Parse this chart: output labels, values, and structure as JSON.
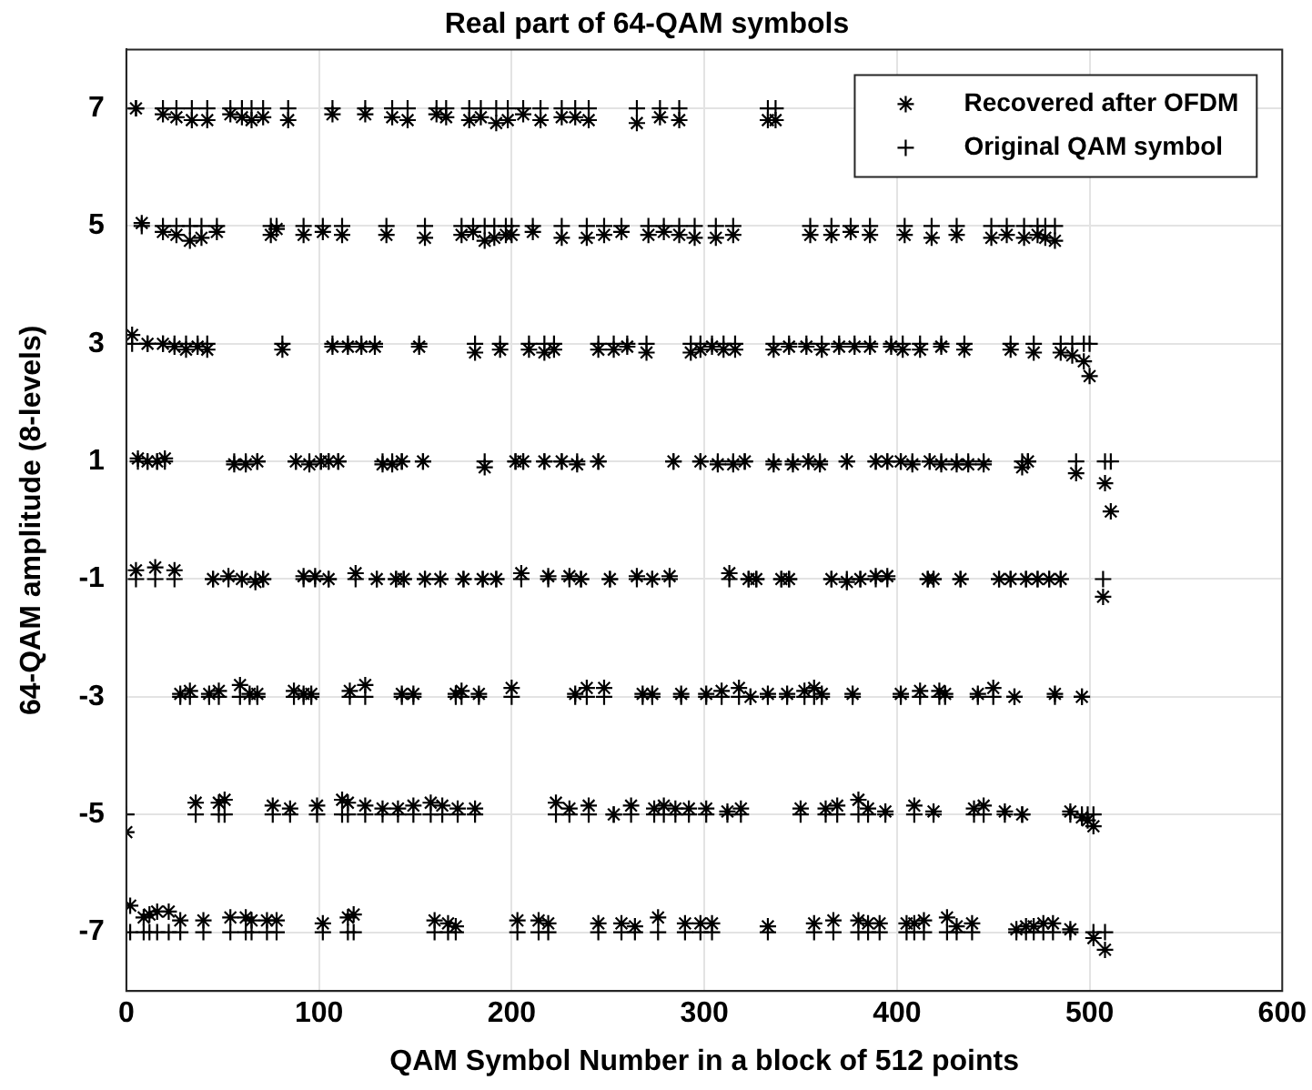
{
  "chart_data": {
    "type": "scatter",
    "title": "Real part of 64-QAM symbols",
    "xlabel": "QAM Symbol Number in a block of 512 points",
    "ylabel": "64-QAM amplitude (8-levels)",
    "xlim": [
      0,
      600
    ],
    "xticks": [
      0,
      100,
      200,
      300,
      400,
      500,
      600
    ],
    "ylim": [
      -8,
      8
    ],
    "yticks": [
      -7,
      -5,
      -3,
      -1,
      1,
      3,
      5,
      7
    ],
    "grid": true,
    "legend": "top right",
    "x": [
      5,
      19,
      26,
      34,
      42,
      54,
      60,
      65,
      71,
      84,
      107,
      124,
      138,
      146,
      161,
      166,
      178,
      184,
      192,
      198,
      206,
      215,
      226,
      233,
      240,
      265,
      277,
      287,
      333,
      337,
      8,
      19,
      26,
      33,
      39,
      47,
      75,
      78,
      92,
      102,
      112,
      135,
      155,
      174,
      180,
      186,
      191,
      197,
      200,
      211,
      226,
      239,
      248,
      257,
      271,
      279,
      287,
      295,
      306,
      315,
      355,
      366,
      376,
      386,
      404,
      418,
      431,
      449,
      457,
      466,
      473,
      477,
      482,
      3,
      11,
      19,
      25,
      31,
      37,
      42,
      81,
      107,
      115,
      122,
      129,
      152,
      181,
      194,
      209,
      217,
      222,
      245,
      253,
      260,
      270,
      293,
      298,
      304,
      310,
      316,
      336,
      344,
      353,
      361,
      370,
      378,
      386,
      397,
      403,
      412,
      423,
      435,
      459,
      471,
      485,
      491,
      497,
      500,
      6,
      11,
      16,
      20,
      56,
      62,
      68,
      88,
      95,
      101,
      105,
      110,
      133,
      138,
      143,
      154,
      186,
      202,
      206,
      217,
      226,
      234,
      245,
      284,
      298,
      307,
      315,
      321,
      336,
      346,
      354,
      360,
      374,
      389,
      395,
      402,
      408,
      417,
      423,
      431,
      437,
      445,
      465,
      468,
      493,
      508,
      511,
      5,
      15,
      25,
      45,
      53,
      60,
      67,
      71,
      92,
      98,
      105,
      119,
      130,
      140,
      144,
      155,
      163,
      175,
      185,
      192,
      205,
      219,
      230,
      236,
      251,
      265,
      273,
      282,
      313,
      323,
      327,
      340,
      344,
      366,
      374,
      381,
      389,
      395,
      416,
      419,
      433,
      453,
      459,
      467,
      473,
      479,
      485,
      507,
      28,
      33,
      43,
      48,
      59,
      64,
      68,
      87,
      92,
      96,
      116,
      124,
      143,
      149,
      171,
      174,
      183,
      200,
      233,
      239,
      248,
      268,
      273,
      288,
      301,
      309,
      318,
      324,
      333,
      343,
      352,
      357,
      361,
      377,
      402,
      412,
      422,
      425,
      442,
      450,
      461,
      482,
      496,
      0,
      36,
      48,
      51,
      76,
      85,
      99,
      112,
      115,
      124,
      133,
      141,
      149,
      158,
      164,
      172,
      181,
      223,
      230,
      240,
      253,
      262,
      274,
      279,
      285,
      292,
      301,
      312,
      319,
      350,
      363,
      369,
      380,
      385,
      394,
      409,
      419,
      440,
      445,
      456,
      465,
      490,
      496,
      499,
      502,
      2,
      9,
      12,
      16,
      22,
      28,
      40,
      54,
      62,
      65,
      73,
      78,
      102,
      115,
      118,
      160,
      167,
      171,
      203,
      214,
      219,
      245,
      257,
      264,
      276,
      290,
      298,
      304,
      333,
      357,
      367,
      380,
      385,
      391,
      405,
      409,
      414,
      426,
      431,
      439,
      462,
      467,
      471,
      476,
      481,
      490,
      502,
      508
    ],
    "series": [
      {
        "name": "Recovered after OFDM",
        "color": "#000000",
        "values": [
          7.0,
          6.9,
          6.85,
          6.8,
          6.8,
          6.9,
          6.85,
          6.8,
          6.85,
          6.8,
          6.9,
          6.9,
          6.85,
          6.8,
          6.9,
          6.85,
          6.8,
          6.85,
          6.75,
          6.8,
          6.9,
          6.8,
          6.85,
          6.85,
          6.8,
          6.75,
          6.85,
          6.8,
          6.8,
          6.8,
          5.05,
          4.9,
          4.85,
          4.75,
          4.8,
          4.9,
          4.85,
          4.95,
          4.85,
          4.9,
          4.85,
          4.85,
          4.8,
          4.85,
          4.9,
          4.75,
          4.8,
          4.85,
          4.85,
          4.9,
          4.8,
          4.8,
          4.85,
          4.9,
          4.85,
          4.9,
          4.85,
          4.8,
          4.8,
          4.85,
          4.85,
          4.85,
          4.9,
          4.85,
          4.85,
          4.8,
          4.85,
          4.8,
          4.85,
          4.8,
          4.85,
          4.8,
          4.75,
          3.15,
          3.0,
          3.0,
          2.95,
          2.9,
          2.95,
          2.9,
          2.9,
          2.95,
          2.95,
          2.95,
          2.95,
          2.95,
          2.85,
          2.9,
          2.9,
          2.85,
          2.9,
          2.9,
          2.9,
          2.95,
          2.85,
          2.85,
          2.9,
          2.95,
          2.9,
          2.9,
          2.9,
          2.95,
          2.95,
          2.9,
          2.95,
          2.95,
          2.95,
          2.95,
          2.9,
          2.9,
          2.95,
          2.9,
          2.9,
          2.85,
          2.85,
          2.8,
          2.7,
          2.45,
          1.05,
          1.0,
          1.0,
          1.05,
          0.95,
          0.95,
          1.0,
          1.0,
          0.95,
          1.0,
          1.0,
          1.0,
          0.95,
          0.95,
          1.0,
          1.0,
          0.9,
          1.0,
          1.0,
          1.0,
          1.0,
          0.95,
          1.0,
          1.0,
          1.0,
          0.95,
          0.95,
          1.0,
          0.95,
          0.95,
          1.0,
          0.95,
          1.0,
          1.0,
          1.0,
          1.0,
          0.95,
          1.0,
          0.95,
          0.95,
          0.95,
          0.95,
          0.9,
          1.0,
          0.8,
          0.63,
          0.15,
          -0.85,
          -0.8,
          -0.85,
          -1.0,
          -0.95,
          -1.0,
          -1.05,
          -1.0,
          -0.95,
          -0.95,
          -1.0,
          -0.9,
          -1.0,
          -1.0,
          -1.0,
          -1.0,
          -1.0,
          -1.0,
          -1.0,
          -1.0,
          -0.9,
          -0.95,
          -0.95,
          -1.0,
          -1.0,
          -0.95,
          -1.0,
          -0.95,
          -0.9,
          -1.0,
          -1.0,
          -1.0,
          -1.0,
          -1.0,
          -1.05,
          -1.0,
          -0.95,
          -0.95,
          -1.0,
          -1.0,
          -1.0,
          -1.0,
          -1.0,
          -1.0,
          -1.0,
          -1.0,
          -1.0,
          -1.3,
          -2.95,
          -2.9,
          -2.95,
          -2.9,
          -2.8,
          -2.95,
          -2.95,
          -2.9,
          -2.95,
          -2.95,
          -2.9,
          -2.8,
          -2.95,
          -2.95,
          -2.95,
          -2.9,
          -2.95,
          -2.85,
          -2.95,
          -2.85,
          -2.85,
          -2.95,
          -2.95,
          -2.95,
          -2.95,
          -2.9,
          -2.85,
          -3.0,
          -2.95,
          -2.95,
          -2.9,
          -2.85,
          -2.95,
          -2.95,
          -2.95,
          -2.9,
          -2.9,
          -2.95,
          -2.95,
          -2.85,
          -3.0,
          -2.95,
          -3.0,
          -5.3,
          -4.8,
          -4.8,
          -4.75,
          -4.85,
          -4.9,
          -4.85,
          -4.75,
          -4.8,
          -4.85,
          -4.9,
          -4.9,
          -4.85,
          -4.8,
          -4.85,
          -4.9,
          -4.9,
          -4.8,
          -4.9,
          -4.85,
          -5.0,
          -4.85,
          -4.9,
          -4.85,
          -4.9,
          -4.9,
          -4.9,
          -4.95,
          -4.9,
          -4.9,
          -4.9,
          -4.85,
          -4.75,
          -4.9,
          -4.95,
          -4.85,
          -4.95,
          -4.9,
          -4.85,
          -4.95,
          -5.0,
          -4.95,
          -5.05,
          -5.1,
          -5.2,
          -6.55,
          -6.75,
          -6.7,
          -6.65,
          -6.65,
          -6.8,
          -6.8,
          -6.75,
          -6.75,
          -6.8,
          -6.8,
          -6.8,
          -6.85,
          -6.75,
          -6.7,
          -6.8,
          -6.85,
          -6.9,
          -6.8,
          -6.8,
          -6.85,
          -6.85,
          -6.85,
          -6.9,
          -6.75,
          -6.85,
          -6.85,
          -6.85,
          -6.9,
          -6.85,
          -6.8,
          -6.8,
          -6.85,
          -6.85,
          -6.85,
          -6.85,
          -6.8,
          -6.75,
          -6.9,
          -6.85,
          -6.95,
          -6.9,
          -6.9,
          -6.85,
          -6.85,
          -6.95,
          -7.1,
          -7.3
        ]
      },
      {
        "name": "Original QAM symbol",
        "color": "#000000",
        "marker": "cross",
        "values": [
          7,
          7,
          7,
          7,
          7,
          7,
          7,
          7,
          7,
          7,
          7,
          7,
          7,
          7,
          7,
          7,
          7,
          7,
          7,
          7,
          7,
          7,
          7,
          7,
          7,
          7,
          7,
          7,
          7,
          7,
          5,
          5,
          5,
          5,
          5,
          5,
          5,
          5,
          5,
          5,
          5,
          5,
          5,
          5,
          5,
          5,
          5,
          5,
          5,
          5,
          5,
          5,
          5,
          5,
          5,
          5,
          5,
          5,
          5,
          5,
          5,
          5,
          5,
          5,
          5,
          5,
          5,
          5,
          5,
          5,
          5,
          5,
          5,
          3,
          3,
          3,
          3,
          3,
          3,
          3,
          3,
          3,
          3,
          3,
          3,
          3,
          3,
          3,
          3,
          3,
          3,
          3,
          3,
          3,
          3,
          3,
          3,
          3,
          3,
          3,
          3,
          3,
          3,
          3,
          3,
          3,
          3,
          3,
          3,
          3,
          3,
          3,
          3,
          3,
          3,
          3,
          3,
          3,
          1,
          1,
          1,
          1,
          1,
          1,
          1,
          1,
          1,
          1,
          1,
          1,
          1,
          1,
          1,
          1,
          1,
          1,
          1,
          1,
          1,
          1,
          1,
          1,
          1,
          1,
          1,
          1,
          1,
          1,
          1,
          1,
          1,
          1,
          1,
          1,
          1,
          1,
          1,
          1,
          1,
          1,
          1,
          1,
          1,
          1,
          1,
          -1,
          -1,
          -1,
          -1,
          -1,
          -1,
          -1,
          -1,
          -1,
          -1,
          -1,
          -1,
          -1,
          -1,
          -1,
          -1,
          -1,
          -1,
          -1,
          -1,
          -1,
          -1,
          -1,
          -1,
          -1,
          -1,
          -1,
          -1,
          -1,
          -1,
          -1,
          -1,
          -1,
          -1,
          -1,
          -1,
          -1,
          -1,
          -1,
          -1,
          -1,
          -1,
          -1,
          -1,
          -1,
          -1,
          -1,
          -1,
          -3,
          -3,
          -3,
          -3,
          -3,
          -3,
          -3,
          -3,
          -3,
          -3,
          -3,
          -3,
          -3,
          -3,
          -3,
          -3,
          -3,
          -3,
          -3,
          -3,
          -3,
          -3,
          -3,
          -3,
          -3,
          -3,
          -3,
          -3,
          -3,
          -3,
          -3,
          -3,
          -3,
          -3,
          -3,
          -3,
          -3,
          -3,
          -3,
          -3,
          -3,
          -3,
          -3,
          -5,
          -5,
          -5,
          -5,
          -5,
          -5,
          -5,
          -5,
          -5,
          -5,
          -5,
          -5,
          -5,
          -5,
          -5,
          -5,
          -5,
          -5,
          -5,
          -5,
          -5,
          -5,
          -5,
          -5,
          -5,
          -5,
          -5,
          -5,
          -5,
          -5,
          -5,
          -5,
          -5,
          -5,
          -5,
          -5,
          -5,
          -5,
          -5,
          -5,
          -5,
          -5,
          -5,
          -5,
          -5,
          -7,
          -7,
          -7,
          -7,
          -7,
          -7,
          -7,
          -7,
          -7,
          -7,
          -7,
          -7,
          -7,
          -7,
          -7,
          -7,
          -7,
          -7,
          -7,
          -7,
          -7,
          -7,
          -7,
          -7,
          -7,
          -7,
          -7,
          -7,
          -7,
          -7,
          -7,
          -7,
          -7,
          -7,
          -7,
          -7,
          -7,
          -7,
          -7,
          -7,
          -7,
          -7,
          -7,
          -7,
          -7,
          -7,
          -7,
          -7
        ]
      }
    ]
  }
}
